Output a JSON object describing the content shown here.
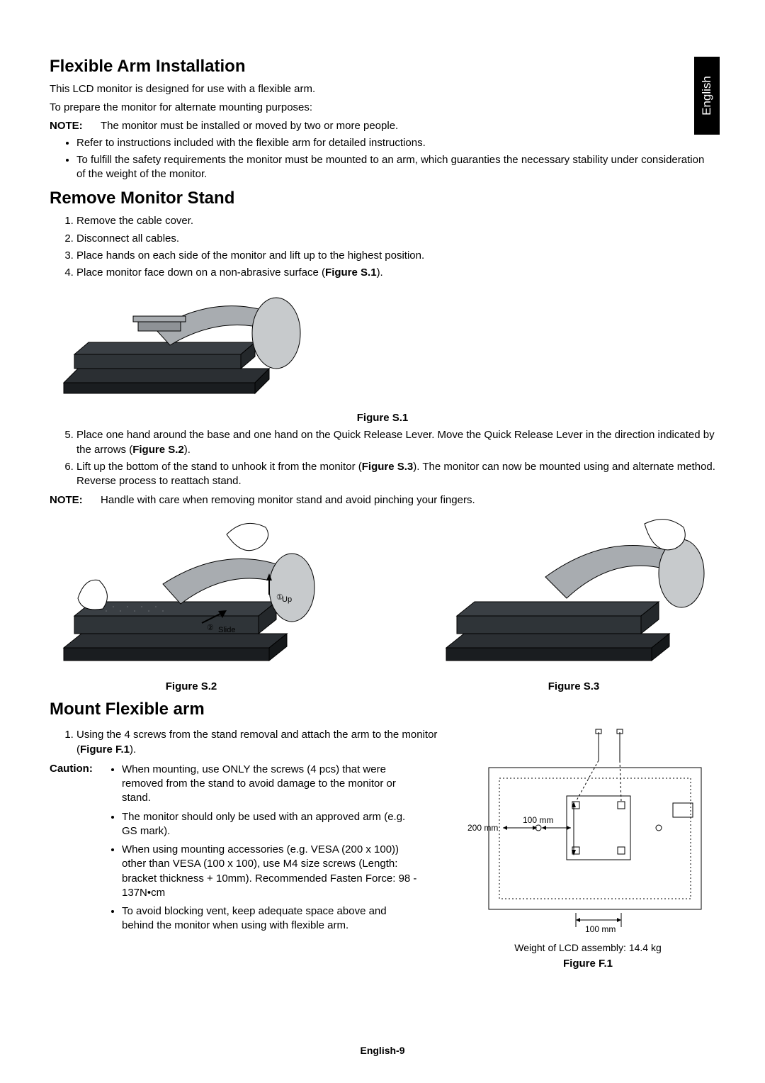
{
  "language_tab": "English",
  "page_footer": "English-9",
  "section1": {
    "heading": "Flexible Arm Installation",
    "para1": "This LCD monitor is designed for use with a flexible arm.",
    "para2": "To prepare the monitor for alternate mounting purposes:",
    "note_label": "NOTE:",
    "note_text": "The monitor must be installed or moved by two or more people.",
    "bullets": [
      "Refer to instructions included with the flexible arm for detailed instructions.",
      "To fulfill the safety requirements the monitor must be mounted to an arm, which guaranties the necessary stability under consideration of the weight of the monitor."
    ]
  },
  "section2": {
    "heading": "Remove Monitor Stand",
    "steps_part1": [
      "Remove the cable cover.",
      "Disconnect all cables.",
      "Place hands on each side of the monitor and lift up to the highest position.",
      "Place monitor face down on a non-abrasive surface (<b>Figure S.1</b>)."
    ],
    "fig_s1_caption": "Figure S.1",
    "steps_part2": [
      "Place one hand around the base and one hand on the Quick Release Lever. Move the Quick Release Lever in the direction indicated by the arrows (<b>Figure S.2</b>).",
      "Lift up the bottom of the stand to unhook it from the monitor (<b>Figure S.3</b>). The monitor can now be mounted using and alternate method. Reverse process to reattach stand."
    ],
    "note2_label": "NOTE:",
    "note2_text": "Handle with care when removing monitor stand and avoid pinching your fingers.",
    "fig_s2_caption": "Figure S.2",
    "fig_s3_caption": "Figure S.3",
    "annot_up": "Up",
    "annot_slide": "Slide",
    "annot_marker1": "①",
    "annot_marker2": "②"
  },
  "section3": {
    "heading": "Mount Flexible arm",
    "step1": "Using the 4 screws from the stand removal and attach the arm to the monitor (<b>Figure F.1</b>).",
    "caution_label": "Caution:",
    "caution_bullets": [
      "When mounting, use ONLY the screws (4 pcs) that were removed from the stand to avoid damage to the monitor or stand.",
      "The monitor should only be used with an approved arm (e.g. GS mark).",
      "When using mounting accessories (e.g. VESA (200 x 100)) other than VESA (100 x 100), use M4 size screws (Length: bracket thickness + 10mm). Recommended Fasten Force: 98 - 137N•cm",
      "To avoid blocking vent, keep adequate space above and behind the monitor when using with flexible arm."
    ],
    "dim_200": "200 mm",
    "dim_100a": "100 mm",
    "dim_100b": "100 mm",
    "weight_text": "Weight of LCD assembly: 14.4 kg",
    "fig_f1_caption": "Figure F.1"
  },
  "diagrams": {
    "monitor_body_fill": "#3a3f44",
    "monitor_body_edge": "#1a1a1a",
    "base_fill": "#2b2f33",
    "arm_fill": "#a8acb0",
    "arm_stroke": "#000000",
    "disc_fill": "#c7cacc",
    "line_color": "#000000",
    "bg": "#ffffff"
  }
}
